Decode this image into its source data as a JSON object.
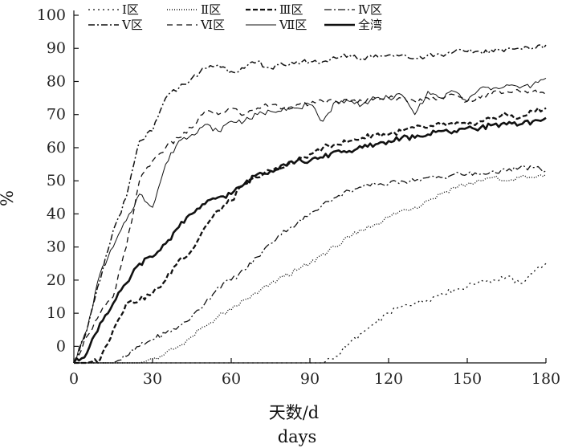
{
  "chart_data": {
    "type": "line",
    "xlabel": "天数/d",
    "xlabel_en": "days",
    "ylabel": "%",
    "xlim": [
      0,
      180
    ],
    "ylim": [
      -5,
      100
    ],
    "x_ticks": [
      0,
      30,
      60,
      90,
      120,
      150,
      180
    ],
    "y_ticks": [
      0,
      10,
      20,
      30,
      40,
      50,
      60,
      70,
      80,
      90,
      100
    ],
    "grid": false,
    "legend_position": "top",
    "x": [
      0,
      5,
      10,
      15,
      20,
      25,
      30,
      35,
      40,
      45,
      50,
      55,
      60,
      65,
      70,
      75,
      80,
      85,
      90,
      95,
      100,
      105,
      110,
      115,
      120,
      125,
      130,
      135,
      140,
      145,
      150,
      155,
      160,
      165,
      170,
      175,
      180
    ],
    "series": [
      {
        "name": "Ⅰ区",
        "dash": "2,4",
        "width": 1.3,
        "values": [
          -5,
          -5,
          -5,
          -5,
          -5,
          -5,
          -5,
          -5,
          -5,
          -5,
          -5,
          -5,
          -5,
          -5,
          -5,
          -5,
          -5,
          -5,
          -5,
          -5,
          -3,
          1,
          4,
          7,
          10,
          12,
          13,
          14,
          16,
          17,
          18,
          20,
          20,
          21,
          19,
          22,
          25
        ]
      },
      {
        "name": "Ⅱ区",
        "dash": "1,2",
        "width": 1.4,
        "values": [
          -5,
          -5,
          -5,
          -5,
          -5,
          -5,
          -4,
          -2,
          0,
          3,
          6,
          9,
          11,
          14,
          16,
          19,
          21,
          23,
          25,
          28,
          30,
          33,
          35,
          37,
          39,
          41,
          42,
          44,
          46,
          48,
          49,
          50,
          51,
          50,
          51,
          51,
          52
        ]
      },
      {
        "name": "Ⅲ区",
        "dash": "6,3",
        "width": 2.3,
        "values": [
          -5,
          -5,
          -4,
          5,
          13,
          14,
          16,
          20,
          26,
          29,
          36,
          41,
          44,
          49,
          51,
          53,
          54,
          56,
          58,
          60,
          61,
          62,
          63,
          64,
          64,
          65,
          66,
          66,
          67,
          67,
          67,
          68,
          69,
          70,
          69,
          71,
          72
        ]
      },
      {
        "name": "Ⅳ区",
        "dash": "9,3,2,3",
        "width": 1.3,
        "values": [
          -5,
          -5,
          -5,
          -5,
          -3,
          0,
          2,
          4,
          6,
          9,
          13,
          18,
          20,
          23,
          27,
          31,
          35,
          37,
          40,
          43,
          45,
          47,
          48,
          49,
          49,
          50,
          50,
          51,
          51,
          52,
          52,
          52,
          53,
          53,
          54,
          54,
          53
        ]
      },
      {
        "name": "Ⅴ区",
        "dash": "8,3,2,3",
        "width": 1.5,
        "values": [
          -5,
          5,
          20,
          35,
          45,
          62,
          65,
          75,
          78,
          81,
          84,
          85,
          83,
          84,
          86,
          84,
          85,
          86,
          86,
          86,
          87,
          88,
          87,
          88,
          88,
          88,
          87,
          88,
          88,
          89,
          89,
          89,
          89,
          90,
          90,
          90,
          91
        ]
      },
      {
        "name": "Ⅵ区",
        "dash": "7,5",
        "width": 1.3,
        "values": [
          -5,
          3,
          10,
          15,
          30,
          50,
          56,
          60,
          63,
          66,
          71,
          70,
          72,
          70,
          72,
          73,
          72,
          73,
          73,
          74,
          74,
          74,
          74,
          75,
          75,
          75,
          74,
          75,
          75,
          76,
          74,
          75,
          77,
          77,
          77,
          77,
          76
        ]
      },
      {
        "name": "Ⅶ区",
        "dash": "",
        "width": 1.0,
        "values": [
          -5,
          5,
          22,
          30,
          38,
          46,
          42,
          55,
          62,
          64,
          67,
          65,
          68,
          68,
          70,
          71,
          72,
          72,
          73,
          68,
          74,
          74,
          73,
          75,
          75,
          76,
          70,
          77,
          75,
          77,
          74,
          78,
          78,
          79,
          78,
          79,
          81
        ]
      },
      {
        "name": "全湾",
        "dash": "",
        "width": 2.6,
        "values": [
          -5,
          -2,
          7,
          13,
          19,
          25,
          27,
          31,
          36,
          40,
          43,
          45,
          46,
          49,
          52,
          53,
          55,
          56,
          56,
          57,
          59,
          59,
          60,
          61,
          62,
          63,
          63,
          64,
          65,
          65,
          66,
          66,
          67,
          67,
          67,
          68,
          69
        ]
      }
    ]
  }
}
